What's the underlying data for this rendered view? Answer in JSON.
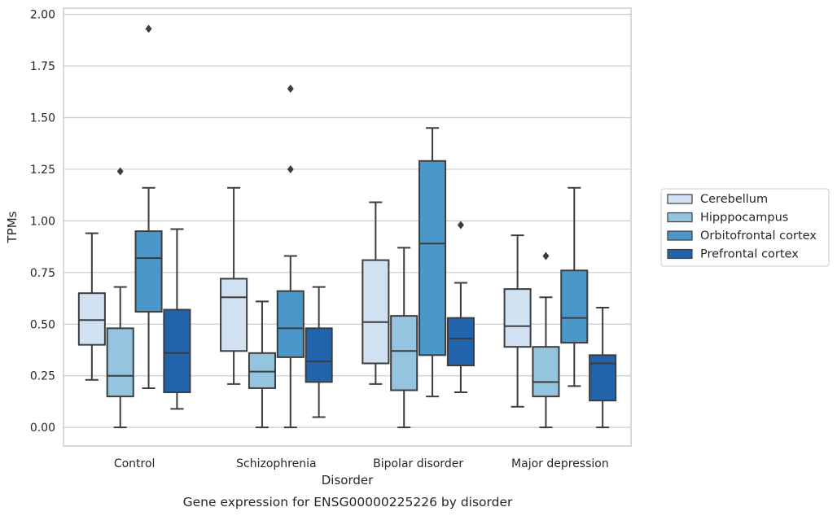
{
  "chart_data": {
    "type": "box",
    "caption": "Gene expression for ENSG00000225226 by disorder",
    "xlabel": "Disorder",
    "ylabel": "TPMs",
    "ylim": [
      -0.09,
      2.03
    ],
    "yticks": [
      0.0,
      0.25,
      0.5,
      0.75,
      1.0,
      1.25,
      1.5,
      1.75,
      2.0
    ],
    "ytick_labels": [
      "0.00",
      "0.25",
      "0.50",
      "0.75",
      "1.00",
      "1.25",
      "1.50",
      "1.75",
      "2.00"
    ],
    "grid": "horizontal",
    "legend_position": "right",
    "categories": [
      "Control",
      "Schizophrenia",
      "Bipolar disorder",
      "Major depression"
    ],
    "series": [
      {
        "name": "Cerebellum",
        "color": "#d0e1f2",
        "boxes": [
          {
            "whislo": 0.23,
            "q1": 0.4,
            "med": 0.52,
            "q3": 0.65,
            "whishi": 0.94,
            "fliers": []
          },
          {
            "whislo": 0.21,
            "q1": 0.37,
            "med": 0.63,
            "q3": 0.72,
            "whishi": 1.16,
            "fliers": []
          },
          {
            "whislo": 0.21,
            "q1": 0.31,
            "med": 0.51,
            "q3": 0.81,
            "whishi": 1.09,
            "fliers": []
          },
          {
            "whislo": 0.1,
            "q1": 0.39,
            "med": 0.49,
            "q3": 0.67,
            "whishi": 0.93,
            "fliers": []
          }
        ]
      },
      {
        "name": "Hipppocampus",
        "color": "#94c4df",
        "boxes": [
          {
            "whislo": 0.0,
            "q1": 0.15,
            "med": 0.25,
            "q3": 0.48,
            "whishi": 0.68,
            "fliers": [
              1.24
            ]
          },
          {
            "whislo": 0.0,
            "q1": 0.19,
            "med": 0.27,
            "q3": 0.36,
            "whishi": 0.61,
            "fliers": []
          },
          {
            "whislo": 0.0,
            "q1": 0.18,
            "med": 0.37,
            "q3": 0.54,
            "whishi": 0.87,
            "fliers": []
          },
          {
            "whislo": 0.0,
            "q1": 0.15,
            "med": 0.22,
            "q3": 0.39,
            "whishi": 0.63,
            "fliers": [
              0.83
            ]
          }
        ]
      },
      {
        "name": "Orbitofrontal cortex",
        "color": "#4a98c9",
        "boxes": [
          {
            "whislo": 0.19,
            "q1": 0.56,
            "med": 0.82,
            "q3": 0.95,
            "whishi": 1.16,
            "fliers": [
              1.93
            ]
          },
          {
            "whislo": 0.0,
            "q1": 0.34,
            "med": 0.48,
            "q3": 0.66,
            "whishi": 0.83,
            "fliers": [
              1.25,
              1.64
            ]
          },
          {
            "whislo": 0.15,
            "q1": 0.35,
            "med": 0.89,
            "q3": 1.29,
            "whishi": 1.45,
            "fliers": []
          },
          {
            "whislo": 0.2,
            "q1": 0.41,
            "med": 0.53,
            "q3": 0.76,
            "whishi": 1.16,
            "fliers": []
          }
        ]
      },
      {
        "name": "Prefrontal cortex",
        "color": "#2164ab",
        "boxes": [
          {
            "whislo": 0.09,
            "q1": 0.17,
            "med": 0.36,
            "q3": 0.57,
            "whishi": 0.96,
            "fliers": []
          },
          {
            "whislo": 0.05,
            "q1": 0.22,
            "med": 0.32,
            "q3": 0.48,
            "whishi": 0.68,
            "fliers": []
          },
          {
            "whislo": 0.17,
            "q1": 0.3,
            "med": 0.43,
            "q3": 0.53,
            "whishi": 0.7,
            "fliers": [
              0.98
            ]
          },
          {
            "whislo": 0.0,
            "q1": 0.13,
            "med": 0.31,
            "q3": 0.35,
            "whishi": 0.58,
            "fliers": []
          }
        ]
      }
    ]
  }
}
